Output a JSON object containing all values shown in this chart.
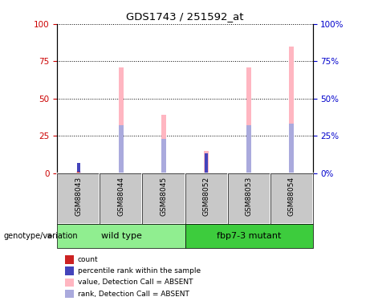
{
  "title": "GDS1743 / 251592_at",
  "samples": [
    "GSM88043",
    "GSM88044",
    "GSM88045",
    "GSM88052",
    "GSM88053",
    "GSM88054"
  ],
  "groups": [
    {
      "name": "wild type",
      "indices": [
        0,
        1,
        2
      ],
      "color": "#90EE90"
    },
    {
      "name": "fbp7-3 mutant",
      "indices": [
        3,
        4,
        5
      ],
      "color": "#3DCC3D"
    }
  ],
  "value_bars": [
    1,
    71,
    39,
    15,
    71,
    85
  ],
  "rank_bars": [
    0,
    32,
    23,
    0,
    32,
    33
  ],
  "small_count": [
    1,
    0,
    0,
    0,
    0,
    0
  ],
  "small_rank": [
    7,
    0,
    0,
    13,
    0,
    0
  ],
  "value_color": "#FFB6C1",
  "rank_color": "#AAAADD",
  "count_color": "#CC2222",
  "prank_color": "#4444BB",
  "ylim": [
    0,
    100
  ],
  "yticks": [
    0,
    25,
    50,
    75,
    100
  ],
  "legend_items": [
    {
      "label": "count",
      "color": "#CC2222"
    },
    {
      "label": "percentile rank within the sample",
      "color": "#4444BB"
    },
    {
      "label": "value, Detection Call = ABSENT",
      "color": "#FFB6C1"
    },
    {
      "label": "rank, Detection Call = ABSENT",
      "color": "#AAAADD"
    }
  ],
  "genotype_label": "genotype/variation",
  "left_ytick_color": "#CC0000",
  "right_ytick_color": "#0000CC",
  "sample_box_color": "#C8C8C8",
  "wt_color": "#90EE90",
  "mut_color": "#3DCC3D"
}
